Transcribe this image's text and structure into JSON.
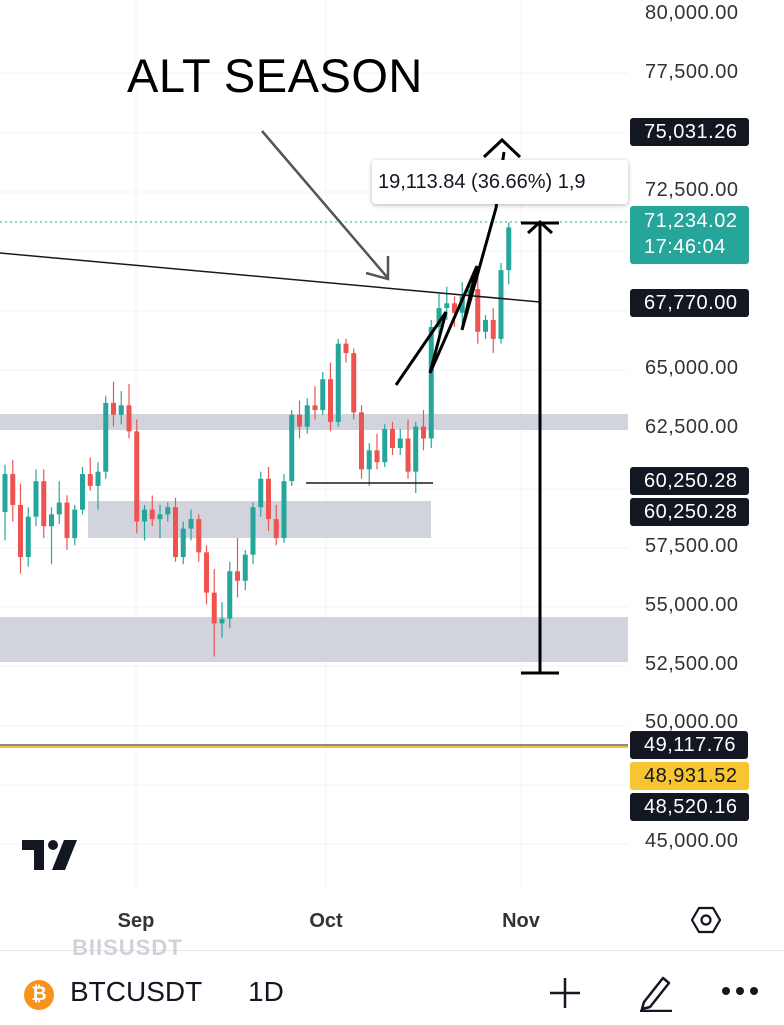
{
  "chart_data": {
    "type": "candlestick",
    "title": "ALT SEASON",
    "x_axis": {
      "ticks": [
        "Sep",
        "Oct",
        "Nov"
      ]
    },
    "y_axis": {
      "ticks": [
        "45,000.00",
        "50,000.00",
        "52,500.00",
        "55,000.00",
        "57,500.00",
        "62,500.00",
        "65,000.00",
        "72,500.00",
        "77,500.00",
        "80,000.00"
      ],
      "range": [
        44000,
        80700
      ]
    },
    "candles_ohlc": [
      [
        59000,
        61000,
        57800,
        60600
      ],
      [
        60600,
        61200,
        58600,
        59300
      ],
      [
        59300,
        60200,
        56400,
        57100
      ],
      [
        57100,
        59200,
        56700,
        58800
      ],
      [
        58800,
        60800,
        58400,
        60300
      ],
      [
        60300,
        60800,
        57900,
        58400
      ],
      [
        58400,
        59200,
        56800,
        58900
      ],
      [
        58900,
        60300,
        58500,
        59400
      ],
      [
        59400,
        59700,
        57400,
        57900
      ],
      [
        57900,
        59300,
        57600,
        59100
      ],
      [
        59100,
        60900,
        58900,
        60600
      ],
      [
        60600,
        61300,
        59900,
        60100
      ],
      [
        60100,
        61100,
        59100,
        60700
      ],
      [
        60700,
        63900,
        60400,
        63600
      ],
      [
        63600,
        64500,
        62600,
        63100
      ],
      [
        63100,
        64100,
        62700,
        63500
      ],
      [
        63500,
        64400,
        62100,
        62400
      ],
      [
        62400,
        62900,
        58100,
        58600
      ],
      [
        58600,
        59300,
        57800,
        59100
      ],
      [
        59100,
        59700,
        58400,
        58700
      ],
      [
        58700,
        59300,
        57900,
        58900
      ],
      [
        58900,
        59400,
        58600,
        59200
      ],
      [
        59200,
        59600,
        56900,
        57100
      ],
      [
        57100,
        58600,
        56800,
        58300
      ],
      [
        58300,
        59100,
        57800,
        58700
      ],
      [
        58700,
        58900,
        56900,
        57300
      ],
      [
        57300,
        57600,
        55100,
        55600
      ],
      [
        55600,
        56600,
        52900,
        54300
      ],
      [
        54300,
        55200,
        53700,
        54500
      ],
      [
        54500,
        56900,
        54100,
        56500
      ],
      [
        56500,
        57900,
        55400,
        56100
      ],
      [
        56100,
        57400,
        55700,
        57200
      ],
      [
        57200,
        59400,
        56800,
        59200
      ],
      [
        59200,
        60700,
        58800,
        60400
      ],
      [
        60400,
        60900,
        58200,
        58700
      ],
      [
        58700,
        59300,
        57600,
        57900
      ],
      [
        57900,
        60600,
        57700,
        60300
      ],
      [
        60300,
        63300,
        60100,
        63100
      ],
      [
        63100,
        63700,
        62100,
        62600
      ],
      [
        62600,
        63800,
        62300,
        63500
      ],
      [
        63500,
        64300,
        62900,
        63300
      ],
      [
        63300,
        64900,
        63100,
        64600
      ],
      [
        64600,
        65300,
        62400,
        62800
      ],
      [
        62800,
        66300,
        62600,
        66100
      ],
      [
        66100,
        66300,
        65300,
        65700
      ],
      [
        65700,
        65900,
        62900,
        63200
      ],
      [
        63200,
        63500,
        60400,
        60800
      ],
      [
        60800,
        61900,
        60100,
        61600
      ],
      [
        61600,
        62300,
        60800,
        61100
      ],
      [
        61100,
        62700,
        60900,
        62500
      ],
      [
        62500,
        62800,
        61400,
        61700
      ],
      [
        61700,
        62500,
        61400,
        62100
      ],
      [
        62100,
        62900,
        60400,
        60700
      ],
      [
        60700,
        62800,
        59800,
        62600
      ],
      [
        62600,
        63300,
        61600,
        62100
      ],
      [
        62100,
        67100,
        61700,
        66800
      ],
      [
        66800,
        68200,
        66400,
        67600
      ],
      [
        67600,
        68500,
        67100,
        67800
      ],
      [
        67800,
        68100,
        66800,
        67400
      ],
      [
        67400,
        68700,
        66900,
        68100
      ],
      [
        68100,
        68800,
        67700,
        68400
      ],
      [
        68400,
        69200,
        66100,
        66600
      ],
      [
        66600,
        67300,
        66300,
        67100
      ],
      [
        67100,
        67600,
        65700,
        66300
      ],
      [
        66300,
        69500,
        66100,
        69200
      ],
      [
        69200,
        71200,
        68600,
        71000
      ]
    ]
  },
  "title": "ALT SEASON",
  "tooltip": "19,113.84 (36.66%) 1,9",
  "price_badges": {
    "b75031": "75,031.26",
    "current_price": "71,234.02",
    "countdown": "17:46:04",
    "b67770": "67,770.00",
    "b60250a": "60,250.28",
    "b60250b": "60,250.28",
    "b49117": "49,117.76",
    "b48931": "48,931.52",
    "b48520": "48,520.16"
  },
  "colors": {
    "up": "#26a69a",
    "down": "#ef5350",
    "zone": "#d1d4dc",
    "yellow_line": "#f7c531",
    "badge": "#131722"
  },
  "bottom_bar": {
    "symbol": "BTCUSDT",
    "interval": "1D",
    "ghost_text": "BIISUSDT",
    "coin_icon": "bitcoin-icon"
  }
}
